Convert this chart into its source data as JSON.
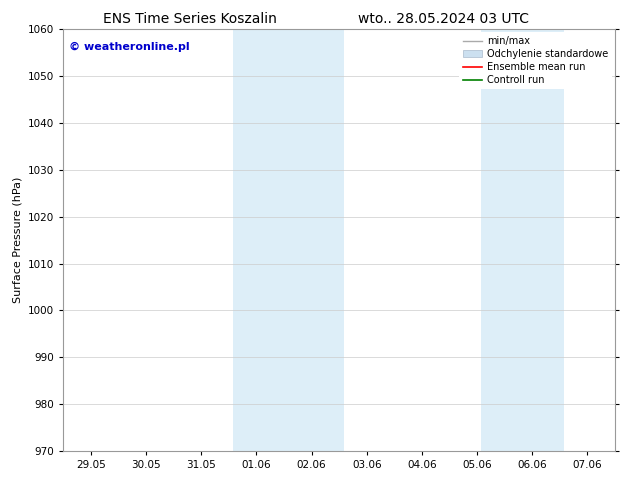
{
  "title_left": "ENS Time Series Koszalin",
  "title_right": "wto.. 28.05.2024 03 UTC",
  "ylabel": "Surface Pressure (hPa)",
  "ylim": [
    970,
    1060
  ],
  "yticks": [
    970,
    980,
    990,
    1000,
    1010,
    1020,
    1030,
    1040,
    1050,
    1060
  ],
  "x_tick_labels": [
    "29.05",
    "30.05",
    "31.05",
    "01.06",
    "02.06",
    "03.06",
    "04.06",
    "05.06",
    "06.06",
    "07.06"
  ],
  "x_tick_positions": [
    0,
    1,
    2,
    3,
    4,
    5,
    6,
    7,
    8,
    9
  ],
  "xlim": [
    -0.5,
    9.5
  ],
  "shaded_regions": [
    {
      "x_start": 2.58,
      "x_end": 4.58
    },
    {
      "x_start": 7.08,
      "x_end": 8.58
    }
  ],
  "shaded_color": "#ddeef8",
  "watermark_text": "© weatheronline.pl",
  "watermark_color": "#0000cc",
  "watermark_fontsize": 8,
  "legend_entries": [
    {
      "label": "min/max",
      "color": "#aaaaaa",
      "type": "line",
      "lw": 1.0
    },
    {
      "label": "Odchylenie standardowe",
      "color": "#cce0f0",
      "type": "patch"
    },
    {
      "label": "Ensemble mean run",
      "color": "red",
      "type": "line",
      "lw": 1.2
    },
    {
      "label": "Controll run",
      "color": "green",
      "type": "line",
      "lw": 1.2
    }
  ],
  "grid_color": "#cccccc",
  "bg_color": "#ffffff",
  "title_fontsize": 10,
  "axis_fontsize": 7.5,
  "ylabel_fontsize": 8,
  "legend_fontsize": 7
}
